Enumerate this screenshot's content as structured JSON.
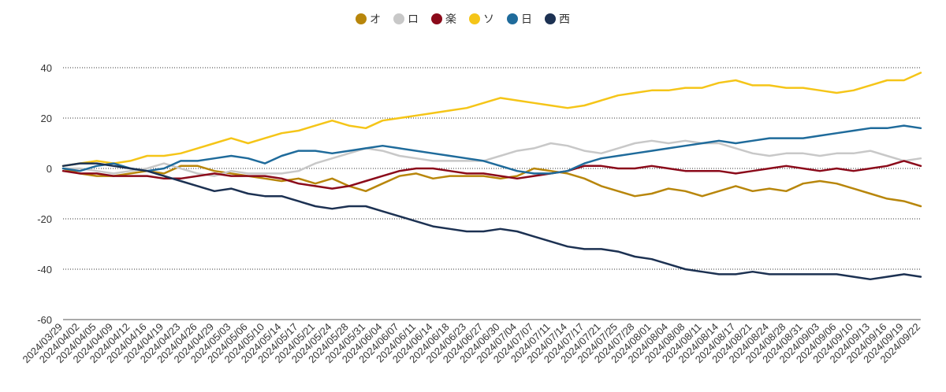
{
  "chart_data": {
    "type": "line",
    "legend_position": "top-center",
    "grid": true,
    "ylim": [
      -60,
      40
    ],
    "yticks": [
      -60,
      -40,
      -20,
      0,
      20,
      40
    ],
    "x_labels": [
      "2024/03/29",
      "2024/04/02",
      "2024/04/05",
      "2024/04/09",
      "2024/04/12",
      "2024/04/16",
      "2024/04/19",
      "2024/04/23",
      "2024/04/26",
      "2024/04/29",
      "2024/05/03",
      "2024/05/06",
      "2024/05/10",
      "2024/05/14",
      "2024/05/17",
      "2024/05/21",
      "2024/05/24",
      "2024/05/28",
      "2024/05/31",
      "2024/06/04",
      "2024/06/07",
      "2024/06/11",
      "2024/06/14",
      "2024/06/18",
      "2024/06/23",
      "2024/06/27",
      "2024/06/30",
      "2024/07/04",
      "2024/07/07",
      "2024/07/11",
      "2024/07/14",
      "2024/07/17",
      "2024/07/21",
      "2024/07/25",
      "2024/07/28",
      "2024/08/01",
      "2024/08/04",
      "2024/08/08",
      "2024/08/11",
      "2024/08/14",
      "2024/08/17",
      "2024/08/21",
      "2024/08/24",
      "2024/08/28",
      "2024/08/31",
      "2024/09/03",
      "2024/09/06",
      "2024/09/10",
      "2024/09/13",
      "2024/09/16",
      "2024/09/19",
      "2024/09/22"
    ],
    "series": [
      {
        "name": "オ",
        "color": "#b8860b",
        "values": [
          0,
          -2,
          -3,
          -3,
          -2,
          -1,
          -2,
          1,
          1,
          -1,
          -2,
          -3,
          -4,
          -5,
          -4,
          -6,
          -4,
          -7,
          -9,
          -6,
          -3,
          -2,
          -4,
          -3,
          -3,
          -3,
          -4,
          -3,
          0,
          -1,
          -2,
          -4,
          -7,
          -9,
          -11,
          -10,
          -8,
          -9,
          -11,
          -9,
          -7,
          -9,
          -8,
          -9,
          -6,
          -5,
          -6,
          -8,
          -10,
          -12,
          -13,
          -15
        ]
      },
      {
        "name": "ロ",
        "color": "#c8c8c8",
        "values": [
          0,
          0,
          -1,
          -2,
          -1,
          0,
          2,
          0,
          -2,
          -3,
          -1,
          -2,
          -2,
          -2,
          -1,
          2,
          4,
          6,
          8,
          7,
          5,
          4,
          3,
          3,
          3,
          3,
          5,
          7,
          8,
          10,
          9,
          7,
          6,
          8,
          10,
          11,
          10,
          11,
          10,
          10,
          8,
          6,
          5,
          6,
          6,
          5,
          6,
          6,
          7,
          5,
          3,
          4
        ]
      },
      {
        "name": "楽",
        "color": "#8b0a1a",
        "values": [
          -1,
          -2,
          -2,
          -3,
          -3,
          -3,
          -4,
          -4,
          -3,
          -2,
          -3,
          -3,
          -3,
          -4,
          -6,
          -7,
          -8,
          -7,
          -5,
          -3,
          -1,
          0,
          0,
          -1,
          -2,
          -2,
          -3,
          -4,
          -3,
          -2,
          -1,
          1,
          1,
          0,
          0,
          1,
          0,
          -1,
          -1,
          -1,
          -2,
          -1,
          0,
          1,
          0,
          -1,
          0,
          -1,
          0,
          1,
          3,
          1
        ]
      },
      {
        "name": "ソ",
        "color": "#f5c518",
        "values": [
          1,
          2,
          3,
          2,
          3,
          5,
          5,
          6,
          8,
          10,
          12,
          10,
          12,
          14,
          15,
          17,
          19,
          17,
          16,
          19,
          20,
          21,
          22,
          23,
          24,
          26,
          28,
          27,
          26,
          25,
          24,
          25,
          27,
          29,
          30,
          31,
          31,
          32,
          32,
          34,
          35,
          33,
          33,
          32,
          32,
          31,
          30,
          31,
          33,
          35,
          35,
          38
        ]
      },
      {
        "name": "日",
        "color": "#1f6b9b",
        "values": [
          0,
          -1,
          1,
          2,
          0,
          -1,
          0,
          3,
          3,
          4,
          5,
          4,
          2,
          5,
          7,
          7,
          6,
          7,
          8,
          9,
          8,
          7,
          6,
          5,
          4,
          3,
          1,
          -1,
          -2,
          -2,
          -1,
          2,
          4,
          5,
          6,
          7,
          8,
          9,
          10,
          11,
          10,
          11,
          12,
          12,
          12,
          13,
          14,
          15,
          16,
          16,
          17,
          16
        ]
      },
      {
        "name": "西",
        "color": "#1c3152",
        "values": [
          1,
          2,
          2,
          1,
          0,
          -1,
          -3,
          -5,
          -7,
          -9,
          -8,
          -10,
          -11,
          -11,
          -13,
          -15,
          -16,
          -15,
          -15,
          -17,
          -19,
          -21,
          -23,
          -24,
          -25,
          -25,
          -24,
          -25,
          -27,
          -29,
          -31,
          -32,
          -32,
          -33,
          -35,
          -36,
          -38,
          -40,
          -41,
          -42,
          -42,
          -41,
          -42,
          -42,
          -42,
          -42,
          -42,
          -43,
          -44,
          -43,
          -42,
          -43
        ]
      }
    ]
  }
}
